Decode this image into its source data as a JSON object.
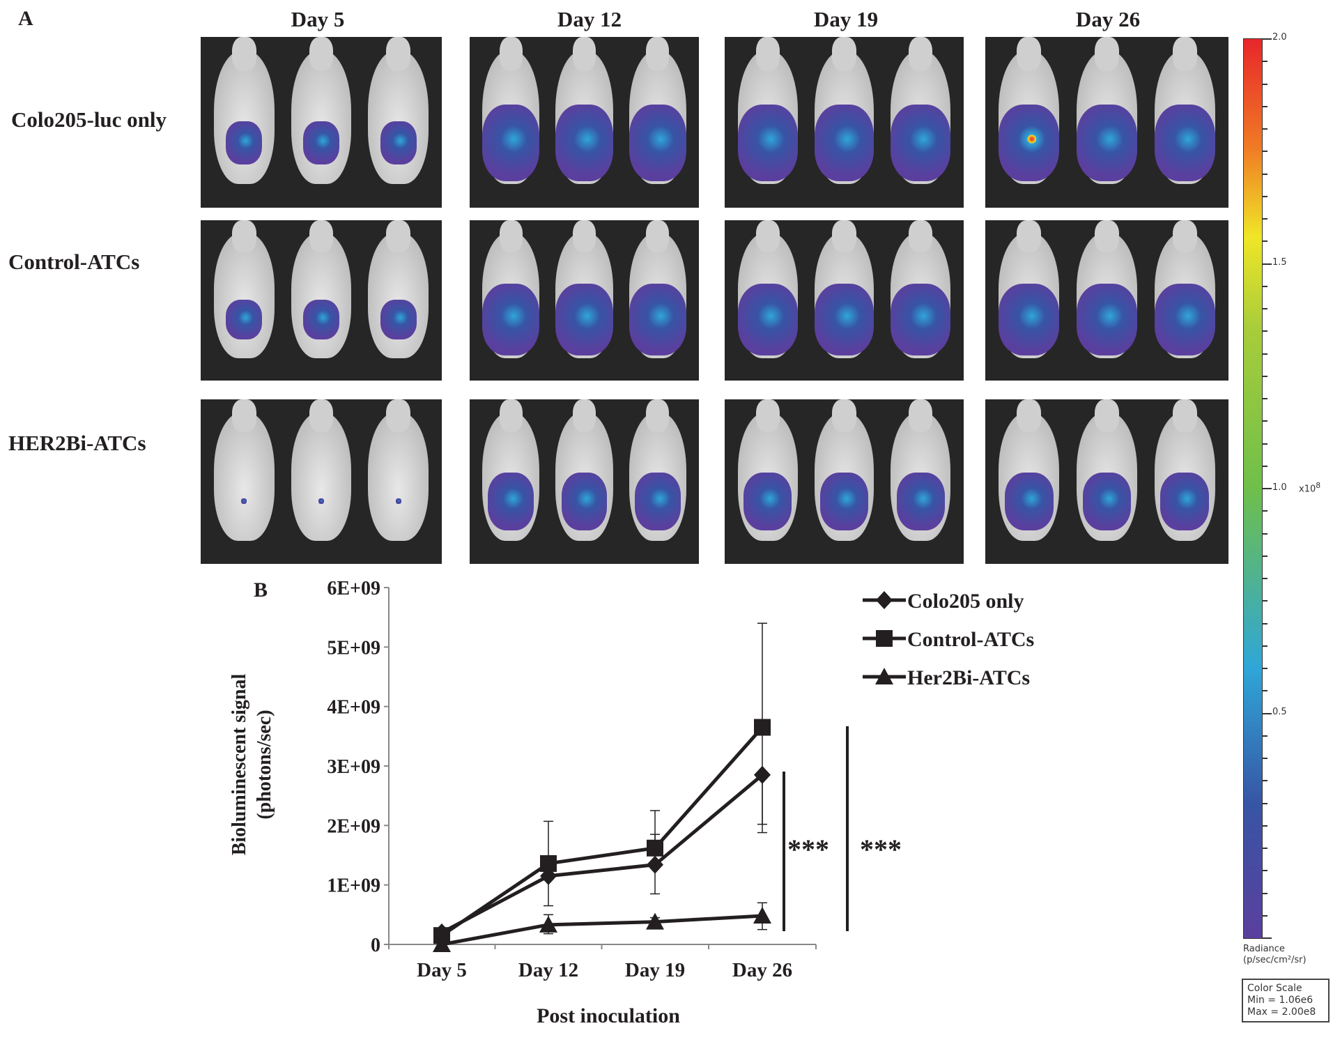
{
  "panel_a": {
    "letter": "A",
    "columns": [
      "Day 5",
      "Day 12",
      "Day 19",
      "Day 26"
    ],
    "rows": [
      "Colo205-luc only",
      "Control-ATCs",
      "HER2Bi-ATCs"
    ],
    "colorbar": {
      "ticks": [
        "2.0",
        "1.5",
        "1.0",
        "0.5"
      ],
      "multiplier": "x10",
      "exponent": "8",
      "unit_line1": "Radiance",
      "unit_line2": "(p/sec/cm²/sr)",
      "box_title": "Color Scale",
      "box_min": "Min = 1.06e6",
      "box_max": "Max = 2.00e8",
      "colors": [
        "#e8262a",
        "#f07a25",
        "#f0e626",
        "#7cc242",
        "#2fa6d8",
        "#3755a5",
        "#5b3f9e"
      ]
    }
  },
  "chart_data": {
    "type": "line",
    "panel_letter": "B",
    "title": "",
    "xlabel": "Post inoculation",
    "ylabel_line1": "Bioluminescent signal",
    "ylabel_line2": "(photons/sec)",
    "categories": [
      "Day 5",
      "Day 12",
      "Day 19",
      "Day 26"
    ],
    "ylim": [
      0,
      6000000000
    ],
    "yticks": [
      {
        "value": 0,
        "label": "0"
      },
      {
        "value": 1000000000,
        "label": "1E+09"
      },
      {
        "value": 2000000000,
        "label": "2E+09"
      },
      {
        "value": 3000000000,
        "label": "3E+09"
      },
      {
        "value": 4000000000,
        "label": "4E+09"
      },
      {
        "value": 5000000000,
        "label": "5E+09"
      },
      {
        "value": 6000000000,
        "label": "6E+09"
      }
    ],
    "grid": false,
    "legend_position": "top-right",
    "series": [
      {
        "name": "Colo205 only",
        "marker": "diamond",
        "values": [
          200000000,
          1150000000,
          1340000000,
          2850000000
        ],
        "err_low": [
          150000000,
          650000000,
          850000000,
          1880000000
        ],
        "err_high": [
          250000000,
          1150000000,
          1850000000,
          2850000000
        ]
      },
      {
        "name": "Control-ATCs",
        "marker": "square",
        "values": [
          150000000,
          1360000000,
          1620000000,
          3650000000
        ],
        "err_low": [
          100000000,
          1360000000,
          1620000000,
          2020000000
        ],
        "err_high": [
          200000000,
          2070000000,
          2250000000,
          5400000000
        ]
      },
      {
        "name": "Her2Bi-ATCs",
        "marker": "triangle",
        "values": [
          0,
          330000000,
          380000000,
          480000000
        ],
        "err_low": [
          0,
          180000000,
          300000000,
          250000000
        ],
        "err_high": [
          0,
          500000000,
          450000000,
          700000000
        ]
      }
    ],
    "annotations": [
      "***",
      "***"
    ]
  }
}
